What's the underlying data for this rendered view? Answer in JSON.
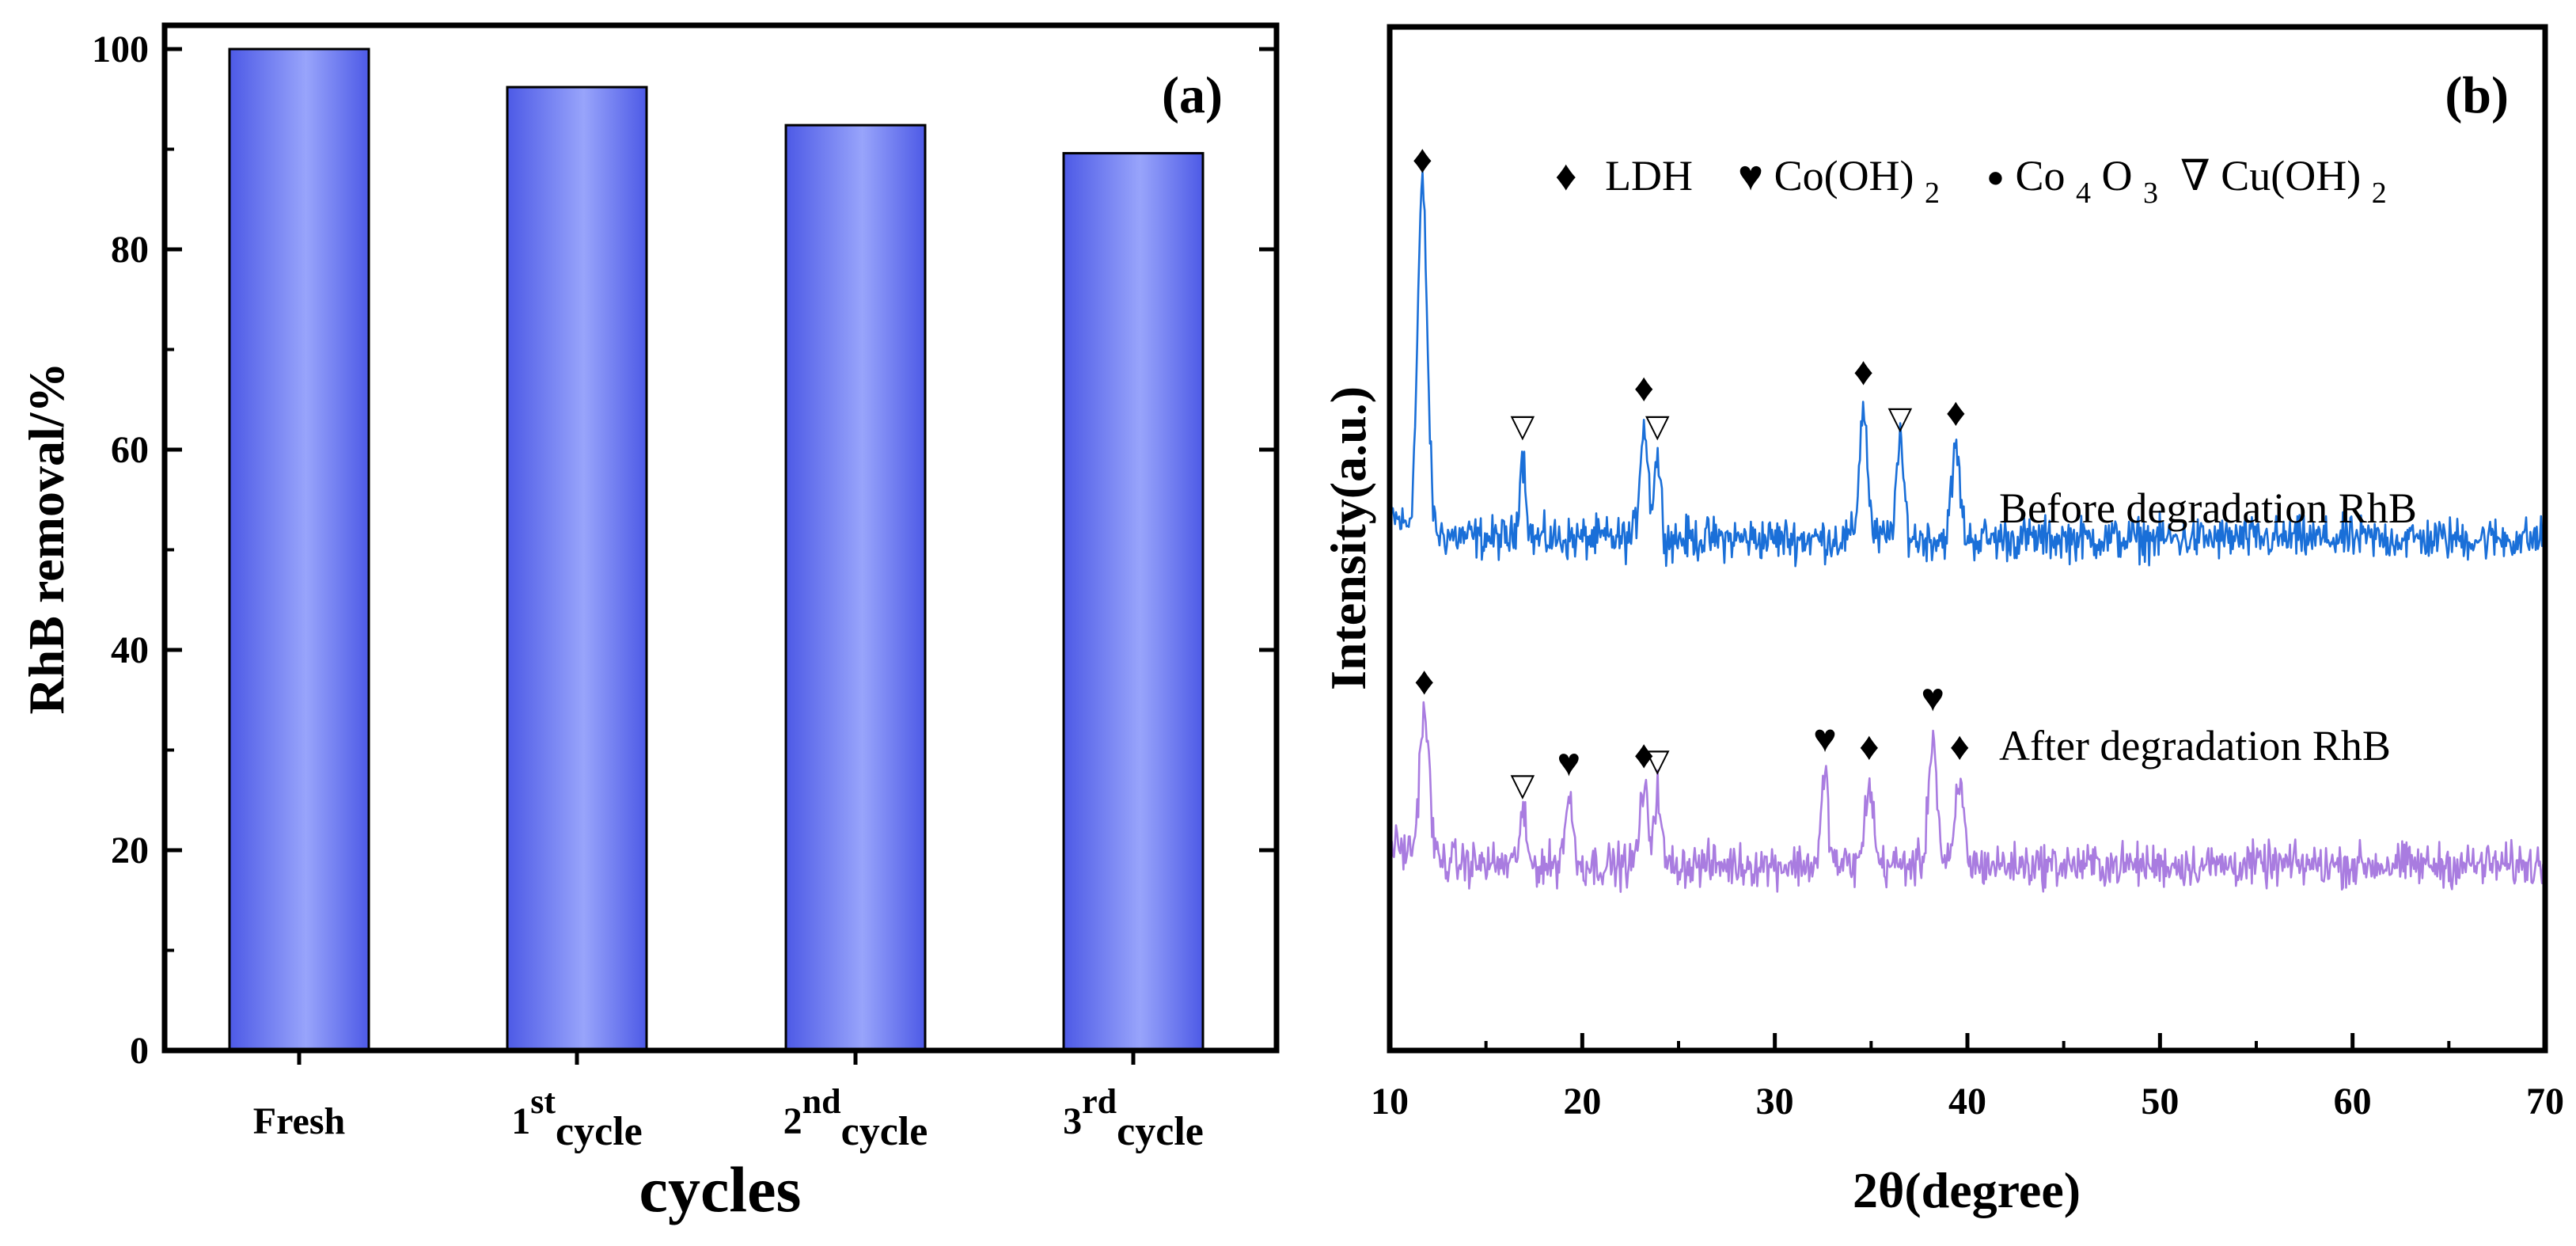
{
  "chart_data": [
    {
      "panel": "a",
      "type": "bar",
      "panel_label": "(a)",
      "categories": [
        {
          "base": "Fresh",
          "sup": "",
          "sub": ""
        },
        {
          "base": "1",
          "sup": "st",
          "sub": "cycle"
        },
        {
          "base": "2",
          "sup": "nd",
          "sub": "cycle"
        },
        {
          "base": "3",
          "sup": "rd",
          "sub": "cycle"
        }
      ],
      "values": [
        100,
        96.2,
        92.4,
        89.6
      ],
      "xlabel": "cycles",
      "ylabel": "RhB removal/%",
      "ylim": [
        0,
        100
      ],
      "yticks": [
        "0",
        "20",
        "40",
        "60",
        "80",
        "100"
      ],
      "colors": {
        "bar_edge": "#4d5ae6",
        "bar_center": "#98a4fb"
      }
    },
    {
      "panel": "b",
      "type": "line",
      "panel_label": "(b)",
      "xlabel": "2θ(degree)",
      "ylabel": "Intensity(a.u.)",
      "xlim": [
        10,
        70
      ],
      "xticks": [
        "10",
        "20",
        "30",
        "40",
        "50",
        "60",
        "70"
      ],
      "legend": {
        "items": [
          {
            "symbol": "diamond",
            "char": "♦",
            "text": "LDH",
            "sub": ""
          },
          {
            "symbol": "heart",
            "char": "♥",
            "text": "Co(OH)",
            "sub": "2"
          },
          {
            "symbol": "dot",
            "char": "●",
            "text": "Co",
            "sub": "4",
            "text2": "O",
            "sub2": "3"
          },
          {
            "symbol": "triangle",
            "char": "∇",
            "text": "Cu(OH)",
            "sub": "2"
          }
        ]
      },
      "series": [
        {
          "name": "Before degradation RhB",
          "color": "#1a6fd8",
          "baseline": 58,
          "peaks": [
            {
              "x": 11.7,
              "height": 42,
              "width": 0.35,
              "marker": "diamond"
            },
            {
              "x": 16.9,
              "height": 10,
              "width": 0.25,
              "marker": "triangle"
            },
            {
              "x": 23.2,
              "height": 14,
              "width": 0.3,
              "marker": "diamond"
            },
            {
              "x": 23.9,
              "height": 10,
              "width": 0.25,
              "marker": "triangle"
            },
            {
              "x": 34.6,
              "height": 16,
              "width": 0.3,
              "marker": "diamond"
            },
            {
              "x": 36.5,
              "height": 11,
              "width": 0.3,
              "marker": "triangle"
            },
            {
              "x": 39.4,
              "height": 11,
              "width": 0.3,
              "marker": "diamond"
            }
          ]
        },
        {
          "name": "After degradation RhB",
          "color": "#a97ce0",
          "baseline": 18,
          "peaks": [
            {
              "x": 11.8,
              "height": 18,
              "width": 0.35,
              "marker": "diamond"
            },
            {
              "x": 16.9,
              "height": 6,
              "width": 0.25,
              "marker": "triangle"
            },
            {
              "x": 19.3,
              "height": 8,
              "width": 0.3,
              "marker": "heart"
            },
            {
              "x": 23.2,
              "height": 9,
              "width": 0.3,
              "marker": "diamond"
            },
            {
              "x": 23.9,
              "height": 9,
              "width": 0.25,
              "marker": "triangle"
            },
            {
              "x": 32.6,
              "height": 11,
              "width": 0.25,
              "marker": "heart"
            },
            {
              "x": 34.9,
              "height": 10,
              "width": 0.3,
              "marker": "diamond"
            },
            {
              "x": 38.2,
              "height": 16,
              "width": 0.3,
              "marker": "heart"
            },
            {
              "x": 39.6,
              "height": 10,
              "width": 0.3,
              "marker": "diamond"
            }
          ]
        }
      ]
    }
  ]
}
